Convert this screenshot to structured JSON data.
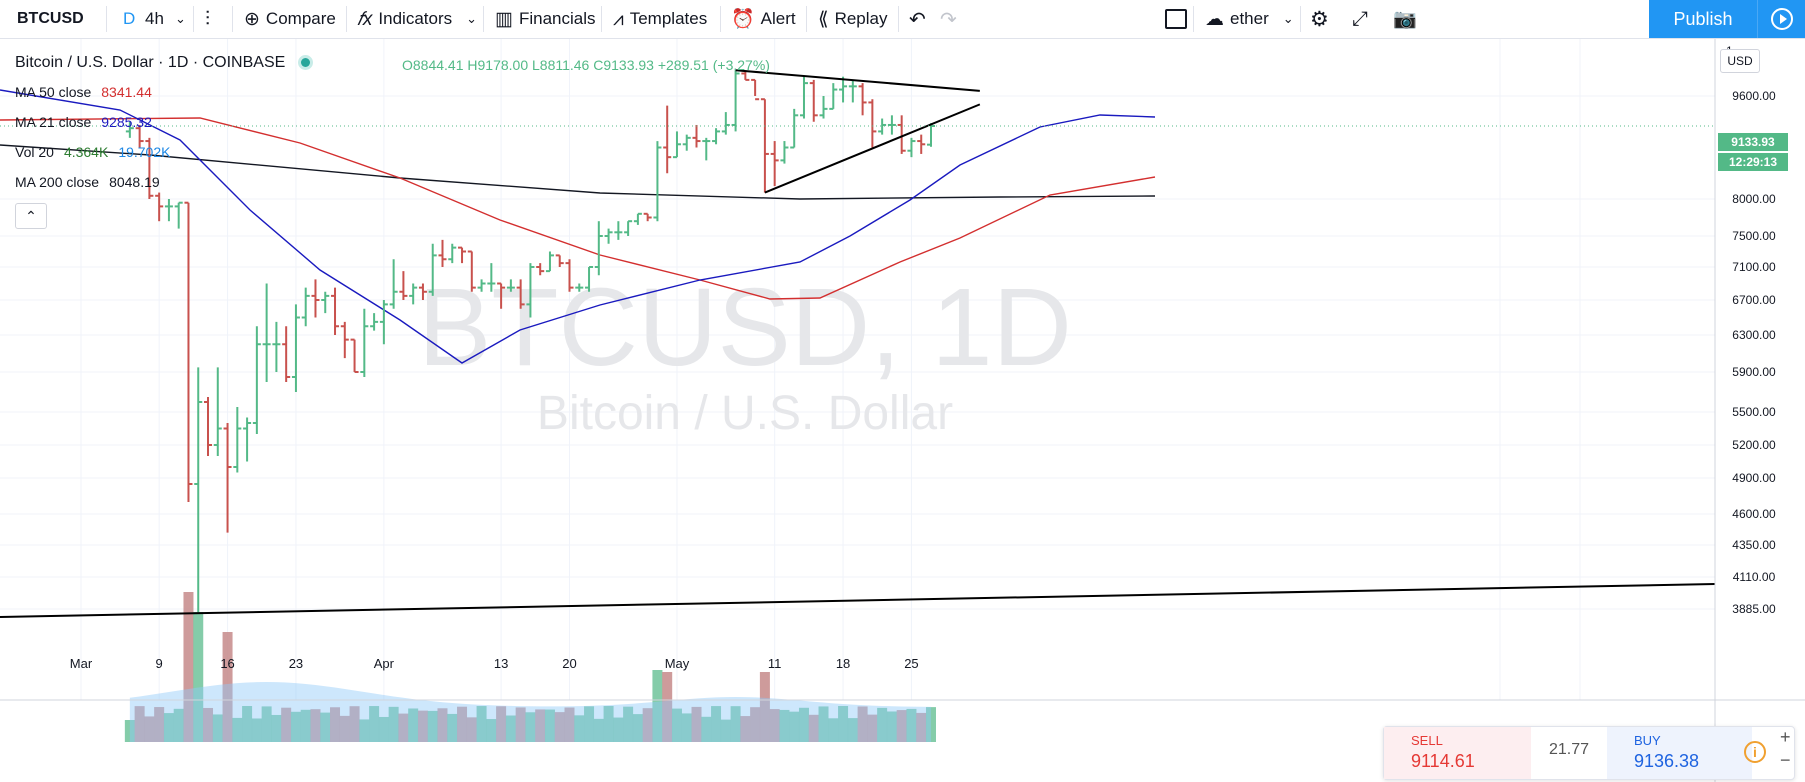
{
  "toolbar": {
    "symbol": "BTCUSD",
    "interval_d": "D",
    "interval_4h": "4h",
    "compare": "Compare",
    "indicators": "Indicators",
    "financials": "Financials",
    "templates": "Templates",
    "alert": "Alert",
    "replay": "Replay",
    "layout_name": "ether",
    "publish": "Publish"
  },
  "header": {
    "title": "Bitcoin / U.S. Dollar · 1D · COINBASE",
    "ohlc": "O8844.41 H9178.00 L8811.46 C9133.93 +289.51 (+3.27%)"
  },
  "legend": [
    {
      "label": "MA 50 close",
      "value": "8341.44",
      "color": "#d32f2f"
    },
    {
      "label": "MA 21 close",
      "value": "9285.32",
      "color": "#1a1abf"
    },
    {
      "label": "Vol 20",
      "value": "4.364K",
      "value2": "19.702K",
      "color": "#2e7d32",
      "color2": "#1e88e5"
    },
    {
      "label": "MA 200 close",
      "value": "8048.19",
      "color": "#131722"
    }
  ],
  "watermark": {
    "big": "BTCUSD, 1D",
    "small": "Bitcoin / U.S. Dollar"
  },
  "price_axis": {
    "currency": "USD",
    "ticks": [
      9600,
      8000,
      7500,
      7100,
      6700,
      6300,
      5900,
      5500,
      5200,
      4900,
      4600,
      4350,
      4110,
      3885
    ],
    "last_price_tag": "9133.93",
    "countdown_tag": "12:29:13",
    "top_tick_partial": "1"
  },
  "time_axis": {
    "labels": [
      "Mar",
      "9",
      "16",
      "23",
      "Apr",
      "13",
      "20",
      "May",
      "11",
      "18",
      "25"
    ]
  },
  "trade_panel": {
    "sell_label": "SELL",
    "sell_price": "9114.61",
    "spread": "21.77",
    "buy_label": "BUY",
    "buy_price": "9136.38"
  },
  "colors": {
    "up": "#53b987",
    "down": "#c8514d",
    "accent": "#2196f3",
    "ma50": "#d32f2f",
    "ma21": "#1a1abf",
    "ma200": "#131722",
    "vol_ma": "#90caf9"
  },
  "chart_data": {
    "type": "ohlc",
    "title": "Bitcoin / U.S. Dollar · 1D · COINBASE",
    "ylim": [
      3700,
      10100
    ],
    "ohlc_approx": [
      {
        "date": "2020-03-06",
        "o": 9050,
        "h": 9200,
        "l": 8950,
        "c": 9100
      },
      {
        "date": "2020-03-07",
        "o": 9100,
        "h": 9150,
        "l": 8800,
        "c": 8900
      },
      {
        "date": "2020-03-08",
        "o": 8900,
        "h": 8950,
        "l": 8000,
        "c": 8050
      },
      {
        "date": "2020-03-09",
        "o": 8050,
        "h": 8100,
        "l": 7700,
        "c": 7900
      },
      {
        "date": "2020-03-10",
        "o": 7900,
        "h": 8000,
        "l": 7700,
        "c": 7900
      },
      {
        "date": "2020-03-11",
        "o": 7900,
        "h": 7950,
        "l": 7600,
        "c": 7950
      },
      {
        "date": "2020-03-12",
        "o": 7950,
        "h": 7950,
        "l": 4700,
        "c": 4850
      },
      {
        "date": "2020-03-13",
        "o": 4850,
        "h": 5950,
        "l": 3860,
        "c": 5600
      },
      {
        "date": "2020-03-14",
        "o": 5600,
        "h": 5650,
        "l": 5100,
        "c": 5200
      },
      {
        "date": "2020-03-15",
        "o": 5200,
        "h": 5950,
        "l": 5100,
        "c": 5350
      },
      {
        "date": "2020-03-16",
        "o": 5350,
        "h": 5400,
        "l": 4450,
        "c": 5000
      },
      {
        "date": "2020-03-17",
        "o": 5000,
        "h": 5550,
        "l": 4950,
        "c": 5350
      },
      {
        "date": "2020-03-18",
        "o": 5350,
        "h": 5450,
        "l": 5050,
        "c": 5400
      },
      {
        "date": "2020-03-19",
        "o": 5400,
        "h": 6400,
        "l": 5300,
        "c": 6200
      },
      {
        "date": "2020-03-20",
        "o": 6200,
        "h": 6900,
        "l": 5800,
        "c": 6200
      },
      {
        "date": "2020-03-21",
        "o": 6200,
        "h": 6450,
        "l": 5900,
        "c": 6200
      },
      {
        "date": "2020-03-22",
        "o": 6200,
        "h": 6400,
        "l": 5800,
        "c": 5850
      },
      {
        "date": "2020-03-23",
        "o": 5850,
        "h": 6650,
        "l": 5700,
        "c": 6500
      },
      {
        "date": "2020-03-24",
        "o": 6500,
        "h": 6850,
        "l": 6400,
        "c": 6750
      },
      {
        "date": "2020-03-25",
        "o": 6750,
        "h": 6950,
        "l": 6500,
        "c": 6700
      },
      {
        "date": "2020-03-26",
        "o": 6700,
        "h": 6800,
        "l": 6550,
        "c": 6750
      },
      {
        "date": "2020-03-27",
        "o": 6750,
        "h": 6850,
        "l": 6300,
        "c": 6400
      },
      {
        "date": "2020-03-28",
        "o": 6400,
        "h": 6450,
        "l": 6050,
        "c": 6250
      },
      {
        "date": "2020-03-29",
        "o": 6250,
        "h": 6250,
        "l": 5900,
        "c": 5900
      },
      {
        "date": "2020-03-30",
        "o": 5900,
        "h": 6600,
        "l": 5850,
        "c": 6400
      },
      {
        "date": "2020-03-31",
        "o": 6400,
        "h": 6550,
        "l": 6350,
        "c": 6450
      },
      {
        "date": "2020-04-01",
        "o": 6450,
        "h": 6700,
        "l": 6200,
        "c": 6650
      },
      {
        "date": "2020-04-02",
        "o": 6650,
        "h": 7200,
        "l": 6600,
        "c": 6800
      },
      {
        "date": "2020-04-03",
        "o": 6800,
        "h": 7050,
        "l": 6700,
        "c": 6750
      },
      {
        "date": "2020-04-04",
        "o": 6750,
        "h": 6900,
        "l": 6650,
        "c": 6850
      },
      {
        "date": "2020-04-05",
        "o": 6850,
        "h": 6900,
        "l": 6700,
        "c": 6800
      },
      {
        "date": "2020-04-06",
        "o": 6800,
        "h": 7400,
        "l": 6750,
        "c": 7250
      },
      {
        "date": "2020-04-07",
        "o": 7250,
        "h": 7450,
        "l": 7100,
        "c": 7200
      },
      {
        "date": "2020-04-08",
        "o": 7200,
        "h": 7400,
        "l": 7150,
        "c": 7350
      },
      {
        "date": "2020-04-09",
        "o": 7350,
        "h": 7350,
        "l": 7150,
        "c": 7300
      },
      {
        "date": "2020-04-10",
        "o": 7300,
        "h": 7300,
        "l": 6800,
        "c": 6850
      },
      {
        "date": "2020-04-11",
        "o": 6850,
        "h": 6950,
        "l": 6800,
        "c": 6900
      },
      {
        "date": "2020-04-12",
        "o": 6900,
        "h": 7150,
        "l": 6800,
        "c": 6900
      },
      {
        "date": "2020-04-13",
        "o": 6900,
        "h": 6900,
        "l": 6600,
        "c": 6850
      },
      {
        "date": "2020-04-14",
        "o": 6850,
        "h": 6950,
        "l": 6800,
        "c": 6850
      },
      {
        "date": "2020-04-15",
        "o": 6850,
        "h": 6950,
        "l": 6600,
        "c": 6650
      },
      {
        "date": "2020-04-16",
        "o": 6650,
        "h": 7150,
        "l": 6500,
        "c": 7100
      },
      {
        "date": "2020-04-17",
        "o": 7100,
        "h": 7150,
        "l": 7000,
        "c": 7050
      },
      {
        "date": "2020-04-18",
        "o": 7050,
        "h": 7300,
        "l": 7050,
        "c": 7250
      },
      {
        "date": "2020-04-19",
        "o": 7250,
        "h": 7250,
        "l": 7100,
        "c": 7150
      },
      {
        "date": "2020-04-20",
        "o": 7150,
        "h": 7200,
        "l": 6800,
        "c": 6850
      },
      {
        "date": "2020-04-21",
        "o": 6850,
        "h": 6900,
        "l": 6800,
        "c": 6850
      },
      {
        "date": "2020-04-22",
        "o": 6850,
        "h": 7100,
        "l": 6800,
        "c": 7100
      },
      {
        "date": "2020-04-23",
        "o": 7100,
        "h": 7700,
        "l": 7000,
        "c": 7500
      },
      {
        "date": "2020-04-24",
        "o": 7500,
        "h": 7600,
        "l": 7400,
        "c": 7550
      },
      {
        "date": "2020-04-25",
        "o": 7550,
        "h": 7700,
        "l": 7450,
        "c": 7550
      },
      {
        "date": "2020-04-26",
        "o": 7550,
        "h": 7700,
        "l": 7500,
        "c": 7700
      },
      {
        "date": "2020-04-27",
        "o": 7700,
        "h": 7800,
        "l": 7650,
        "c": 7800
      },
      {
        "date": "2020-04-28",
        "o": 7800,
        "h": 7800,
        "l": 7700,
        "c": 7750
      },
      {
        "date": "2020-04-29",
        "o": 7750,
        "h": 8900,
        "l": 7700,
        "c": 8800
      },
      {
        "date": "2020-04-30",
        "o": 8800,
        "h": 9450,
        "l": 8400,
        "c": 8650
      },
      {
        "date": "2020-05-01",
        "o": 8650,
        "h": 9050,
        "l": 8650,
        "c": 8850
      },
      {
        "date": "2020-05-02",
        "o": 8850,
        "h": 9000,
        "l": 8750,
        "c": 8950
      },
      {
        "date": "2020-05-03",
        "o": 8950,
        "h": 9150,
        "l": 8800,
        "c": 8900
      },
      {
        "date": "2020-05-04",
        "o": 8900,
        "h": 8950,
        "l": 8600,
        "c": 8900
      },
      {
        "date": "2020-05-05",
        "o": 8900,
        "h": 9100,
        "l": 8850,
        "c": 9050
      },
      {
        "date": "2020-05-06",
        "o": 9050,
        "h": 9350,
        "l": 9000,
        "c": 9150
      },
      {
        "date": "2020-05-07",
        "o": 9150,
        "h": 10000,
        "l": 9050,
        "c": 9950
      },
      {
        "date": "2020-05-08",
        "o": 9950,
        "h": 10000,
        "l": 9850,
        "c": 9850
      },
      {
        "date": "2020-05-09",
        "o": 9850,
        "h": 9850,
        "l": 9600,
        "c": 9550
      },
      {
        "date": "2020-05-10",
        "o": 9550,
        "h": 9550,
        "l": 8100,
        "c": 8700
      },
      {
        "date": "2020-05-11",
        "o": 8700,
        "h": 8900,
        "l": 8200,
        "c": 8600
      },
      {
        "date": "2020-05-12",
        "o": 8600,
        "h": 8900,
        "l": 8550,
        "c": 8800
      },
      {
        "date": "2020-05-13",
        "o": 8800,
        "h": 9400,
        "l": 8800,
        "c": 9300
      },
      {
        "date": "2020-05-14",
        "o": 9300,
        "h": 9900,
        "l": 9250,
        "c": 9800
      },
      {
        "date": "2020-05-15",
        "o": 9800,
        "h": 9850,
        "l": 9200,
        "c": 9300
      },
      {
        "date": "2020-05-16",
        "o": 9300,
        "h": 9600,
        "l": 9250,
        "c": 9400
      },
      {
        "date": "2020-05-17",
        "o": 9400,
        "h": 9800,
        "l": 9400,
        "c": 9700
      },
      {
        "date": "2020-05-18",
        "o": 9700,
        "h": 9900,
        "l": 9500,
        "c": 9750
      },
      {
        "date": "2020-05-19",
        "o": 9750,
        "h": 9850,
        "l": 9500,
        "c": 9750
      },
      {
        "date": "2020-05-20",
        "o": 9750,
        "h": 9800,
        "l": 9300,
        "c": 9500
      },
      {
        "date": "2020-05-21",
        "o": 9500,
        "h": 9550,
        "l": 8800,
        "c": 9050
      },
      {
        "date": "2020-05-22",
        "o": 9050,
        "h": 9250,
        "l": 9000,
        "c": 9150
      },
      {
        "date": "2020-05-23",
        "o": 9150,
        "h": 9300,
        "l": 9000,
        "c": 9150
      },
      {
        "date": "2020-05-24",
        "o": 9150,
        "h": 9300,
        "l": 8700,
        "c": 8750
      },
      {
        "date": "2020-05-25",
        "o": 8750,
        "h": 8950,
        "l": 8650,
        "c": 8900
      },
      {
        "date": "2020-05-26",
        "o": 8900,
        "h": 9000,
        "l": 8700,
        "c": 8850
      },
      {
        "date": "2020-05-27",
        "o": 8844,
        "h": 9178,
        "l": 8811,
        "c": 9134
      }
    ],
    "ma200_start": 8700,
    "ma200_end": 8048,
    "trendline_support": {
      "from": {
        "date": "2020-03-01",
        "price": 3800
      },
      "to": {
        "date": "2020-06-20",
        "price": 4100
      }
    },
    "triangle_upper": {
      "from": {
        "date": "2020-05-07",
        "price": 10000
      },
      "to": {
        "date": "2020-06-01",
        "price": 9680
      }
    },
    "triangle_lower": {
      "from": {
        "date": "2020-05-10",
        "price": 8100
      },
      "to": {
        "date": "2020-06-01",
        "price": 9470
      }
    }
  }
}
